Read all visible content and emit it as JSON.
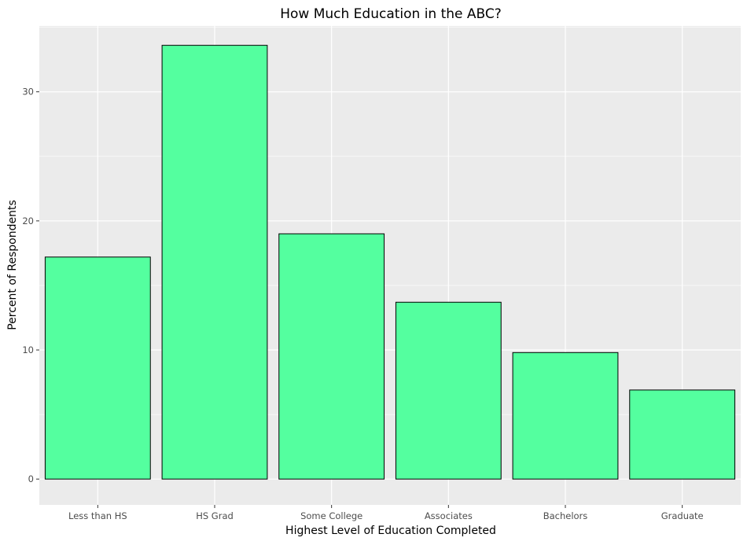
{
  "chart_data": {
    "type": "bar",
    "title": "How Much Education in the ABC?",
    "xlabel": "Highest Level of Education Completed",
    "ylabel": "Percent of Respondents",
    "categories": [
      "Less than HS",
      "HS Grad",
      "Some College",
      "Associates",
      "Bachelors",
      "Graduate"
    ],
    "values": [
      17.2,
      33.6,
      19.0,
      13.7,
      9.8,
      6.9
    ],
    "ylim": [
      -2,
      35.1
    ],
    "yticks": [
      0,
      10,
      20,
      30
    ],
    "yticks_labels": [
      "0",
      "10",
      "20",
      "30"
    ],
    "grid": true,
    "legend": "none"
  },
  "colors": {
    "panel_background": "#ebebeb",
    "grid_major": "#ffffff",
    "bar_fill": "#54ff9f",
    "bar_outline": "#000000"
  }
}
